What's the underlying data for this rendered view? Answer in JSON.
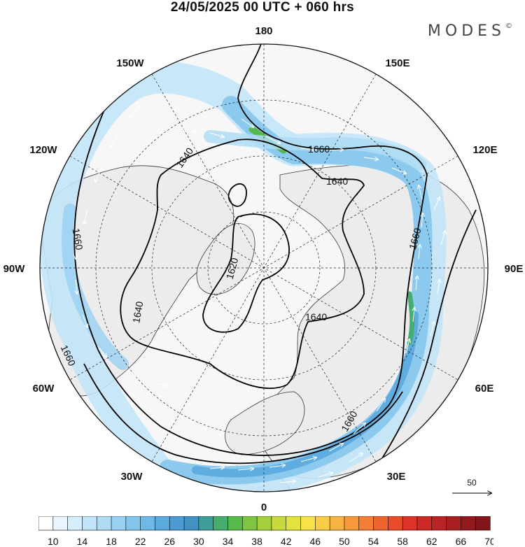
{
  "header": {
    "title": "24/05/2025  00 UTC  + 060 hrs"
  },
  "brand": {
    "name": "MODES",
    "mark": "©"
  },
  "longitude_labels": [
    "180",
    "150E",
    "120E",
    "90E",
    "60E",
    "30E",
    "0",
    "30W",
    "60W",
    "90W",
    "120W",
    "150W"
  ],
  "contour_labels": [
    "1640",
    "1660",
    "1640",
    "1660",
    "1620",
    "1640",
    "1640",
    "1660",
    "1660",
    "1660"
  ],
  "colorbar": {
    "labels": [
      "10",
      "14",
      "18",
      "22",
      "26",
      "30",
      "34",
      "38",
      "42",
      "46",
      "50",
      "54",
      "58",
      "62",
      "66",
      "70"
    ],
    "colors": [
      "#ffffff",
      "#eaf6fd",
      "#d6eefb",
      "#c2e5f8",
      "#aedcf5",
      "#99d1f1",
      "#84c6ec",
      "#6fb9e6",
      "#5aaade",
      "#4c9bd5",
      "#4590c3",
      "#3f9e9a",
      "#45ad6e",
      "#57b94c",
      "#7ec542",
      "#a5cf3d",
      "#c6d93d",
      "#e3e33f",
      "#f7e24a",
      "#f8cc48",
      "#f7b343",
      "#f5993c",
      "#f27f35",
      "#ee642f",
      "#e84c2a",
      "#dc3428",
      "#cd2727",
      "#bb2425",
      "#a81f22",
      "#94191d",
      "#83151a"
    ]
  },
  "reference_vector": {
    "label": "50"
  },
  "colors": {
    "land": "#e8e8e8",
    "jet": "#5aaade",
    "contour": "#000000"
  }
}
